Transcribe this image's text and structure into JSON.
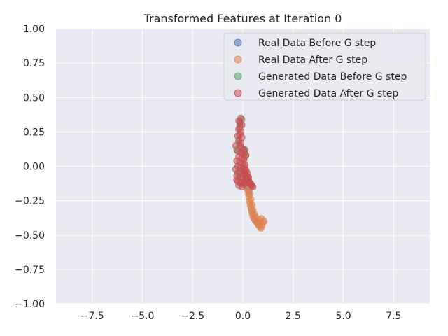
{
  "chart_data": {
    "type": "scatter",
    "title": "Transformed Features at Iteration 0",
    "xlabel": "",
    "ylabel": "",
    "xlim": [
      -9.3,
      9.3
    ],
    "ylim": [
      -1.0,
      1.0
    ],
    "xticks": [
      -7.5,
      -5.0,
      -2.5,
      0.0,
      2.5,
      5.0,
      7.5
    ],
    "xtick_labels": [
      "−7.5",
      "−5.0",
      "−2.5",
      "0.0",
      "2.5",
      "5.0",
      "7.5"
    ],
    "yticks": [
      -1.0,
      -0.75,
      -0.5,
      -0.25,
      0.0,
      0.25,
      0.5,
      0.75,
      1.0
    ],
    "ytick_labels": [
      "−1.00",
      "−0.75",
      "−0.50",
      "−0.25",
      "0.00",
      "0.25",
      "0.50",
      "0.75",
      "1.00"
    ],
    "grid": true,
    "legend_position": "top-right",
    "series": [
      {
        "name": "Real Data Before G step",
        "color": "#4c72b0",
        "points": [
          [
            0.05,
            -0.02
          ],
          [
            0.1,
            -0.06
          ],
          [
            0.15,
            -0.1
          ],
          [
            0.2,
            -0.12
          ],
          [
            0.25,
            -0.15
          ],
          [
            0.3,
            -0.18
          ]
        ]
      },
      {
        "name": "Real Data After G step",
        "color": "#dd8452",
        "points": [
          [
            0.05,
            0.05
          ],
          [
            0.08,
            0.0
          ],
          [
            0.1,
            -0.05
          ],
          [
            0.14,
            -0.08
          ],
          [
            0.18,
            -0.11
          ],
          [
            0.2,
            -0.14
          ],
          [
            0.24,
            -0.17
          ],
          [
            0.28,
            -0.2
          ],
          [
            0.3,
            -0.22
          ],
          [
            0.33,
            -0.25
          ],
          [
            0.36,
            -0.27
          ],
          [
            0.38,
            -0.29
          ],
          [
            0.42,
            -0.31
          ],
          [
            0.45,
            -0.33
          ],
          [
            0.48,
            -0.35
          ],
          [
            0.52,
            -0.37
          ],
          [
            0.55,
            -0.38
          ],
          [
            0.6,
            -0.39
          ],
          [
            0.65,
            -0.4
          ],
          [
            0.7,
            -0.41
          ],
          [
            0.75,
            -0.42
          ],
          [
            0.8,
            -0.43
          ],
          [
            0.85,
            -0.44
          ],
          [
            0.9,
            -0.45
          ],
          [
            0.95,
            -0.43
          ],
          [
            1.0,
            -0.41
          ],
          [
            1.05,
            -0.4
          ],
          [
            0.88,
            -0.41
          ],
          [
            0.82,
            -0.39
          ],
          [
            0.92,
            -0.38
          ],
          [
            0.35,
            -0.2
          ],
          [
            0.4,
            -0.24
          ],
          [
            0.46,
            -0.28
          ],
          [
            0.5,
            -0.32
          ],
          [
            0.58,
            -0.35
          ],
          [
            0.62,
            -0.37
          ],
          [
            0.22,
            -0.09
          ],
          [
            0.26,
            -0.12
          ],
          [
            0.32,
            -0.16
          ],
          [
            0.12,
            -0.02
          ]
        ]
      },
      {
        "name": "Generated Data Before G step",
        "color": "#55a868",
        "points": [
          [
            -0.3,
            0.12
          ],
          [
            -0.2,
            0.18
          ],
          [
            -0.15,
            0.3
          ],
          [
            -0.05,
            0.34
          ],
          [
            0.1,
            0.12
          ],
          [
            -0.25,
            -0.05
          ],
          [
            0.15,
            0.08
          ],
          [
            -0.1,
            -0.12
          ]
        ]
      },
      {
        "name": "Generated Data After G step",
        "color": "#c44e52",
        "points": [
          [
            -0.2,
            0.33
          ],
          [
            -0.1,
            0.35
          ],
          [
            -0.15,
            0.32
          ],
          [
            -0.05,
            0.3
          ],
          [
            -0.2,
            0.27
          ],
          [
            -0.1,
            0.25
          ],
          [
            -0.15,
            0.23
          ],
          [
            -0.05,
            0.21
          ],
          [
            -0.2,
            0.19
          ],
          [
            -0.1,
            0.17
          ],
          [
            -0.15,
            0.15
          ],
          [
            -0.05,
            0.13
          ],
          [
            -0.25,
            0.11
          ],
          [
            -0.1,
            0.1
          ],
          [
            0.0,
            0.09
          ],
          [
            0.1,
            0.1
          ],
          [
            0.15,
            0.08
          ],
          [
            -0.2,
            0.07
          ],
          [
            -0.05,
            0.06
          ],
          [
            0.05,
            0.05
          ],
          [
            -0.3,
            0.04
          ],
          [
            -0.15,
            0.03
          ],
          [
            0.0,
            0.02
          ],
          [
            0.1,
            0.01
          ],
          [
            -0.25,
            0.0
          ],
          [
            -0.1,
            -0.01
          ],
          [
            0.05,
            -0.02
          ],
          [
            0.15,
            -0.03
          ],
          [
            -0.35,
            -0.02
          ],
          [
            -0.2,
            -0.04
          ],
          [
            -0.05,
            -0.05
          ],
          [
            0.1,
            -0.06
          ],
          [
            -0.3,
            -0.07
          ],
          [
            -0.15,
            -0.08
          ],
          [
            0.0,
            -0.09
          ],
          [
            0.15,
            -0.1
          ],
          [
            -0.25,
            -0.11
          ],
          [
            -0.1,
            -0.12
          ],
          [
            0.05,
            -0.13
          ],
          [
            -0.2,
            -0.14
          ],
          [
            -0.05,
            -0.15
          ],
          [
            0.2,
            -0.07
          ],
          [
            0.25,
            -0.09
          ],
          [
            0.3,
            -0.11
          ],
          [
            0.35,
            -0.12
          ],
          [
            0.4,
            -0.13
          ],
          [
            0.45,
            -0.14
          ],
          [
            0.5,
            -0.15
          ],
          [
            -0.35,
            0.15
          ],
          [
            -0.25,
            0.22
          ],
          [
            -0.15,
            0.28
          ],
          [
            0.05,
            0.12
          ],
          [
            -0.3,
            -0.1
          ],
          [
            0.12,
            -0.12
          ],
          [
            0.22,
            -0.05
          ],
          [
            0.28,
            -0.08
          ]
        ]
      }
    ]
  }
}
